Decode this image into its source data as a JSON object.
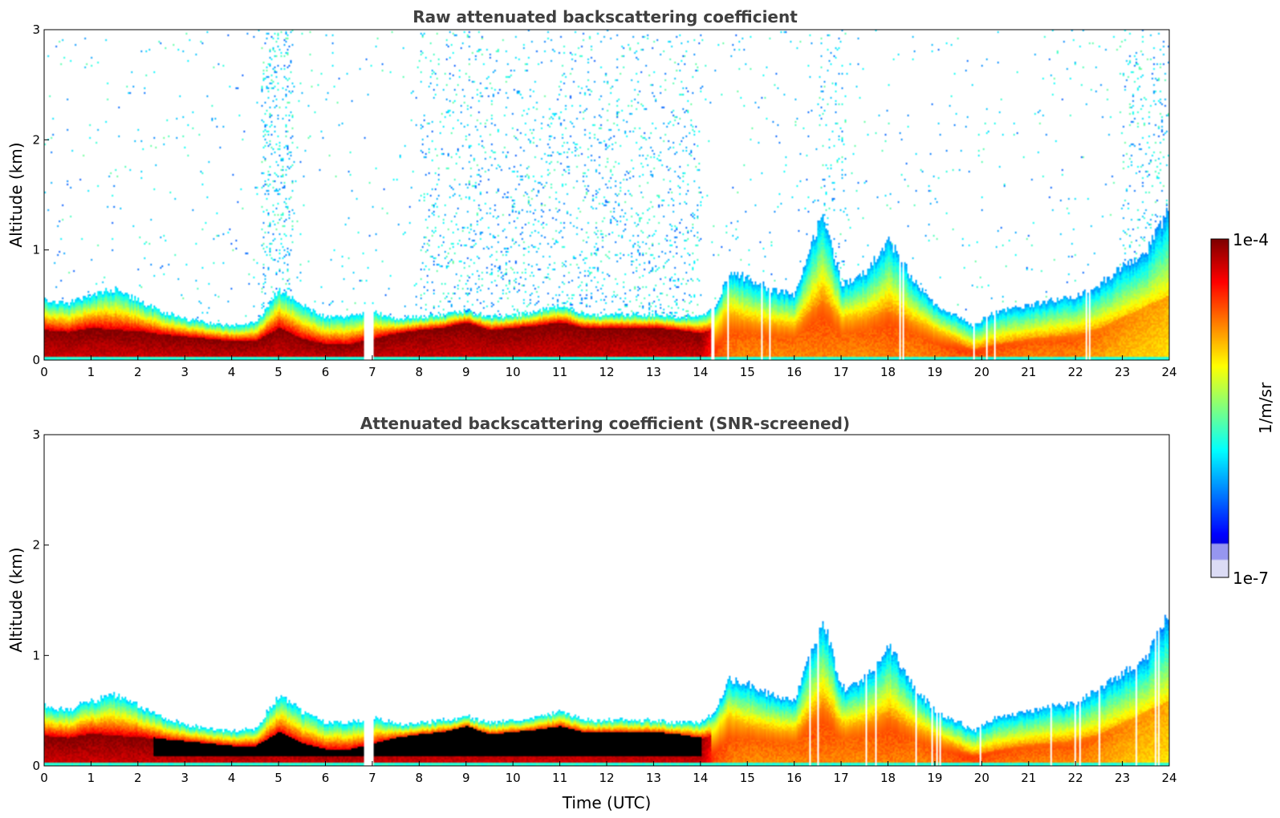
{
  "chart_data": [
    {
      "type": "heatmap",
      "title": "Raw attenuated backscattering coefficient",
      "xlabel": "",
      "ylabel": "Altitude (km)",
      "xlim": [
        0,
        24
      ],
      "ylim": [
        0,
        3
      ],
      "x_ticks": [
        "0",
        "1",
        "2",
        "3",
        "4",
        "5",
        "6",
        "7",
        "8",
        "9",
        "10",
        "11",
        "12",
        "13",
        "14",
        "15",
        "16",
        "17",
        "18",
        "19",
        "20",
        "21",
        "22",
        "23",
        "24"
      ],
      "y_ticks": [
        "0",
        "1",
        "2",
        "3"
      ],
      "noise": true,
      "profile": {
        "hours": [
          0,
          0.5,
          1,
          1.5,
          2,
          2.5,
          3,
          3.5,
          4,
          4.5,
          5,
          5.5,
          6,
          6.5,
          7,
          7.5,
          8,
          8.5,
          9,
          9.5,
          10,
          10.5,
          11,
          11.5,
          12,
          12.5,
          13,
          13.5,
          14,
          14.3,
          14.6,
          15,
          15.5,
          16,
          16.6,
          17,
          17.5,
          18,
          18.5,
          19,
          19.5,
          19.8,
          20.3,
          21,
          21.5,
          22,
          22.5,
          23,
          23.5,
          24
        ],
        "top_km": [
          0.55,
          0.52,
          0.6,
          0.65,
          0.55,
          0.45,
          0.38,
          0.35,
          0.32,
          0.35,
          0.65,
          0.5,
          0.4,
          0.4,
          0.45,
          0.38,
          0.4,
          0.42,
          0.45,
          0.4,
          0.42,
          0.45,
          0.5,
          0.42,
          0.42,
          0.42,
          0.42,
          0.4,
          0.4,
          0.5,
          0.8,
          0.75,
          0.65,
          0.6,
          1.35,
          0.7,
          0.8,
          1.1,
          0.75,
          0.5,
          0.4,
          0.32,
          0.45,
          0.5,
          0.55,
          0.58,
          0.7,
          0.85,
          1.0,
          1.4
        ],
        "core_km": [
          0.28,
          0.26,
          0.3,
          0.28,
          0.27,
          0.24,
          0.22,
          0.2,
          0.18,
          0.18,
          0.3,
          0.2,
          0.15,
          0.15,
          0.2,
          0.25,
          0.28,
          0.3,
          0.35,
          0.28,
          0.3,
          0.32,
          0.35,
          0.3,
          0.3,
          0.3,
          0.3,
          0.28,
          0.25,
          0.3,
          0.4,
          0.35,
          0.32,
          0.3,
          0.55,
          0.35,
          0.38,
          0.45,
          0.35,
          0.25,
          0.15,
          0.1,
          0.15,
          0.2,
          0.22,
          0.24,
          0.3,
          0.4,
          0.5,
          0.6
        ],
        "intensity": [
          1.0,
          1.0,
          1.0,
          1.0,
          1.0,
          1.0,
          1.0,
          1.0,
          1.0,
          1.0,
          1.0,
          1.0,
          1.0,
          1.0,
          1.0,
          1.0,
          1.0,
          1.0,
          1.0,
          1.0,
          1.0,
          1.0,
          1.0,
          1.0,
          1.0,
          1.0,
          1.0,
          1.0,
          1.0,
          0.85,
          0.8,
          0.78,
          0.78,
          0.78,
          0.8,
          0.78,
          0.78,
          0.8,
          0.78,
          0.8,
          0.82,
          0.82,
          0.8,
          0.78,
          0.78,
          0.78,
          0.75,
          0.72,
          0.7,
          0.68
        ]
      }
    },
    {
      "type": "heatmap",
      "title": "Attenuated backscattering coefficient (SNR-screened)",
      "xlabel": "Time (UTC)",
      "ylabel": "Altitude (km)",
      "xlim": [
        0,
        24
      ],
      "ylim": [
        0,
        3
      ],
      "x_ticks": [
        "0",
        "1",
        "2",
        "3",
        "4",
        "5",
        "6",
        "7",
        "8",
        "9",
        "10",
        "11",
        "12",
        "13",
        "14",
        "15",
        "16",
        "17",
        "18",
        "19",
        "20",
        "21",
        "22",
        "23",
        "24"
      ],
      "y_ticks": [
        "0",
        "1",
        "2",
        "3"
      ],
      "noise": false,
      "saturated_core": true
    }
  ],
  "colorbar": {
    "label": "1/m/sr",
    "max_label": "1e-4",
    "min_label": "1e-7",
    "colormap": "jet"
  }
}
